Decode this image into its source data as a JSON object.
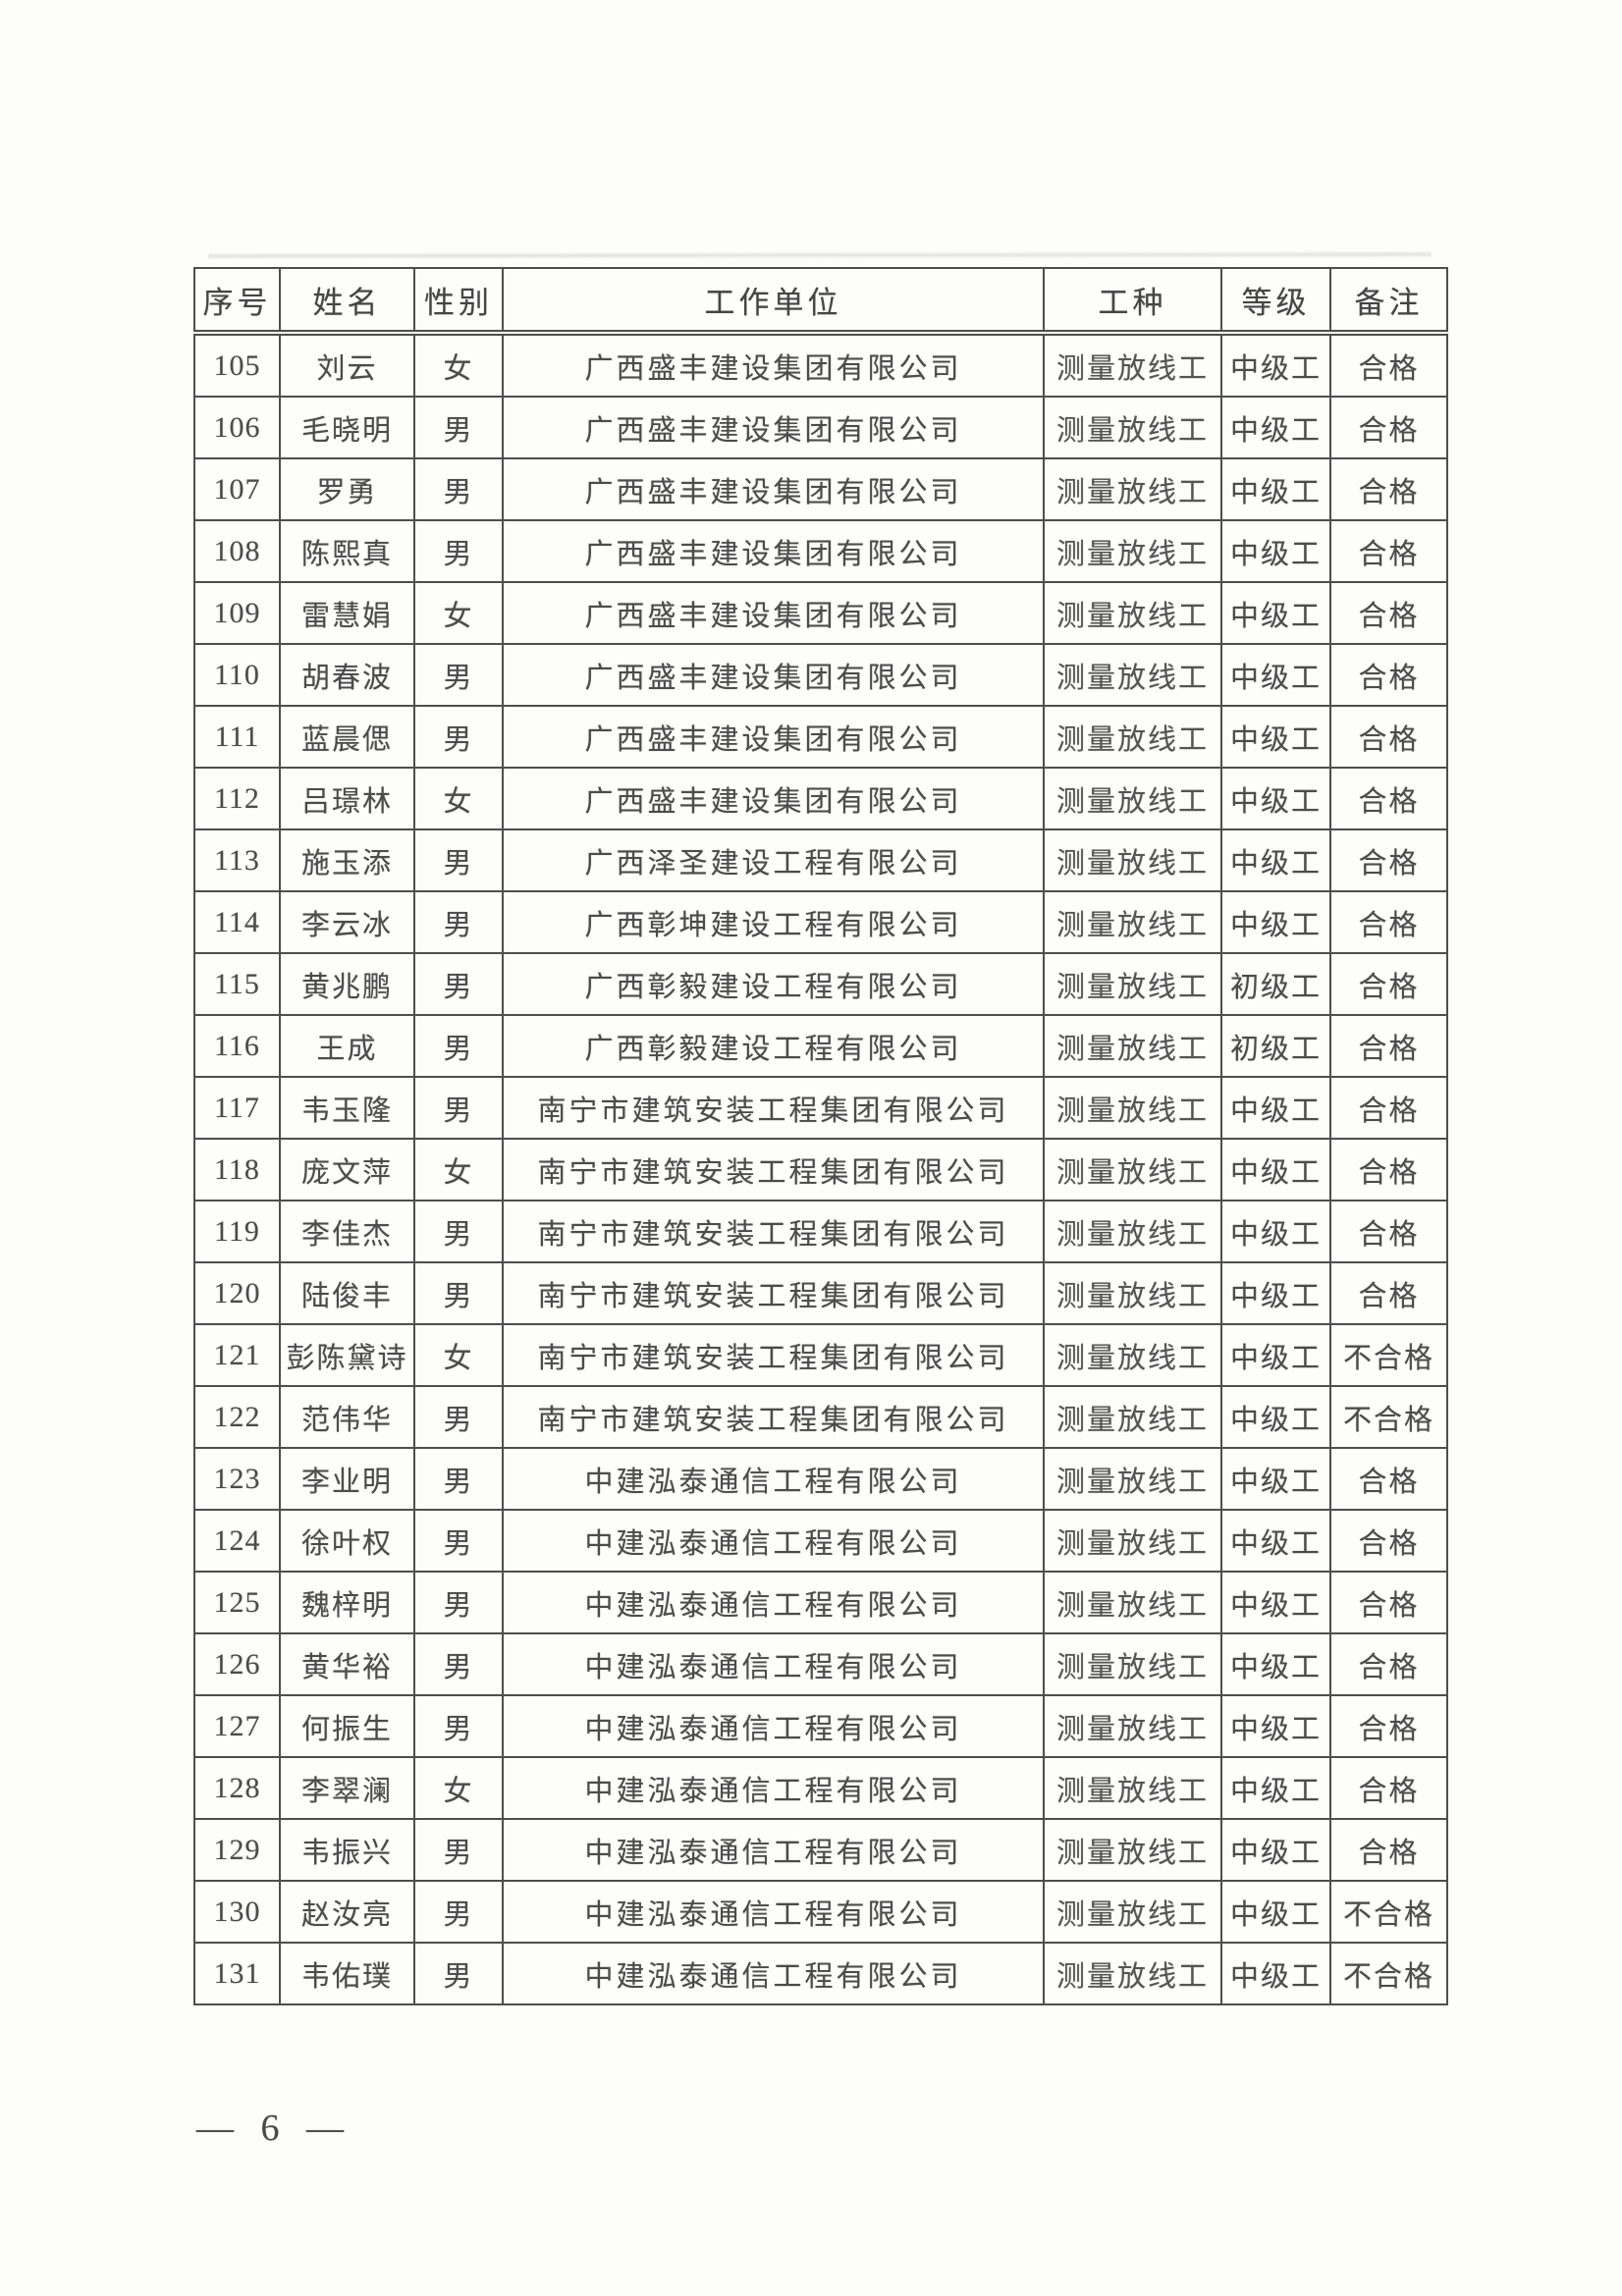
{
  "document": {
    "page_number": "— 6 —"
  },
  "table": {
    "columns": [
      "序号",
      "姓名",
      "性别",
      "工作单位",
      "工种",
      "等级",
      "备注"
    ],
    "rows": [
      [
        "105",
        "刘云",
        "女",
        "广西盛丰建设集团有限公司",
        "测量放线工",
        "中级工",
        "合格"
      ],
      [
        "106",
        "毛晓明",
        "男",
        "广西盛丰建设集团有限公司",
        "测量放线工",
        "中级工",
        "合格"
      ],
      [
        "107",
        "罗勇",
        "男",
        "广西盛丰建设集团有限公司",
        "测量放线工",
        "中级工",
        "合格"
      ],
      [
        "108",
        "陈熙真",
        "男",
        "广西盛丰建设集团有限公司",
        "测量放线工",
        "中级工",
        "合格"
      ],
      [
        "109",
        "雷慧娟",
        "女",
        "广西盛丰建设集团有限公司",
        "测量放线工",
        "中级工",
        "合格"
      ],
      [
        "110",
        "胡春波",
        "男",
        "广西盛丰建设集团有限公司",
        "测量放线工",
        "中级工",
        "合格"
      ],
      [
        "111",
        "蓝晨偲",
        "男",
        "广西盛丰建设集团有限公司",
        "测量放线工",
        "中级工",
        "合格"
      ],
      [
        "112",
        "吕璟林",
        "女",
        "广西盛丰建设集团有限公司",
        "测量放线工",
        "中级工",
        "合格"
      ],
      [
        "113",
        "施玉添",
        "男",
        "广西泽圣建设工程有限公司",
        "测量放线工",
        "中级工",
        "合格"
      ],
      [
        "114",
        "李云冰",
        "男",
        "广西彰坤建设工程有限公司",
        "测量放线工",
        "中级工",
        "合格"
      ],
      [
        "115",
        "黄兆鹏",
        "男",
        "广西彰毅建设工程有限公司",
        "测量放线工",
        "初级工",
        "合格"
      ],
      [
        "116",
        "王成",
        "男",
        "广西彰毅建设工程有限公司",
        "测量放线工",
        "初级工",
        "合格"
      ],
      [
        "117",
        "韦玉隆",
        "男",
        "南宁市建筑安装工程集团有限公司",
        "测量放线工",
        "中级工",
        "合格"
      ],
      [
        "118",
        "庞文萍",
        "女",
        "南宁市建筑安装工程集团有限公司",
        "测量放线工",
        "中级工",
        "合格"
      ],
      [
        "119",
        "李佳杰",
        "男",
        "南宁市建筑安装工程集团有限公司",
        "测量放线工",
        "中级工",
        "合格"
      ],
      [
        "120",
        "陆俊丰",
        "男",
        "南宁市建筑安装工程集团有限公司",
        "测量放线工",
        "中级工",
        "合格"
      ],
      [
        "121",
        "彭陈黛诗",
        "女",
        "南宁市建筑安装工程集团有限公司",
        "测量放线工",
        "中级工",
        "不合格"
      ],
      [
        "122",
        "范伟华",
        "男",
        "南宁市建筑安装工程集团有限公司",
        "测量放线工",
        "中级工",
        "不合格"
      ],
      [
        "123",
        "李业明",
        "男",
        "中建泓泰通信工程有限公司",
        "测量放线工",
        "中级工",
        "合格"
      ],
      [
        "124",
        "徐叶权",
        "男",
        "中建泓泰通信工程有限公司",
        "测量放线工",
        "中级工",
        "合格"
      ],
      [
        "125",
        "魏梓明",
        "男",
        "中建泓泰通信工程有限公司",
        "测量放线工",
        "中级工",
        "合格"
      ],
      [
        "126",
        "黄华裕",
        "男",
        "中建泓泰通信工程有限公司",
        "测量放线工",
        "中级工",
        "合格"
      ],
      [
        "127",
        "何振生",
        "男",
        "中建泓泰通信工程有限公司",
        "测量放线工",
        "中级工",
        "合格"
      ],
      [
        "128",
        "李翠澜",
        "女",
        "中建泓泰通信工程有限公司",
        "测量放线工",
        "中级工",
        "合格"
      ],
      [
        "129",
        "韦振兴",
        "男",
        "中建泓泰通信工程有限公司",
        "测量放线工",
        "中级工",
        "合格"
      ],
      [
        "130",
        "赵汝亮",
        "男",
        "中建泓泰通信工程有限公司",
        "测量放线工",
        "中级工",
        "不合格"
      ],
      [
        "131",
        "韦佑璞",
        "男",
        "中建泓泰通信工程有限公司",
        "测量放线工",
        "中级工",
        "不合格"
      ]
    ]
  }
}
